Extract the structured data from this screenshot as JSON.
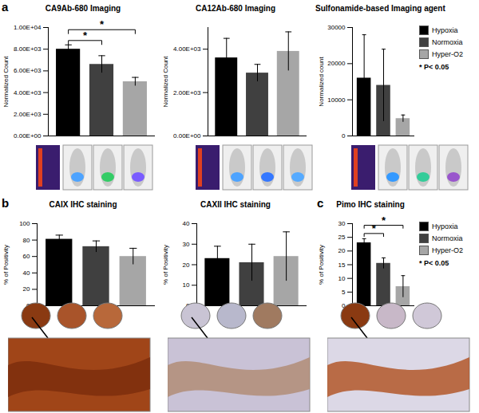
{
  "chart_data": [
    {
      "type": "bar",
      "panel": "a",
      "title": "CA9Ab-680 Imaging",
      "y_label": "Normalized Count",
      "categories": [
        "Hypoxia",
        "Normoxia",
        "Hyper-O2"
      ],
      "values": [
        8000,
        6600,
        5000
      ],
      "errors": [
        400,
        800,
        400
      ],
      "colors": [
        "#000000",
        "#404040",
        "#a6a6a6"
      ],
      "ylim": [
        0,
        10000
      ],
      "yticks": [
        {
          "value": 0,
          "label": "0.00E+00"
        },
        {
          "value": 2000,
          "label": "2.00E+03"
        },
        {
          "value": 4000,
          "label": "4.00E+03"
        },
        {
          "value": 6000,
          "label": "6.00E+03"
        },
        {
          "value": 8000,
          "label": "8.00E+03"
        },
        {
          "value": 10000,
          "label": "1.00E+04"
        }
      ],
      "tick_labels": "y",
      "annotations": [
        {
          "text": "*",
          "from": "Hypoxia",
          "to": "Normoxia"
        },
        {
          "text": "*",
          "from": "Hypoxia",
          "to": "Hyper-O2"
        }
      ]
    },
    {
      "type": "bar",
      "title": "CA12Ab-680 Imaging",
      "y_label": "Normalized Count",
      "categories": [
        "Hypoxia",
        "Normoxia",
        "Hyper-O2"
      ],
      "values": [
        3600,
        2900,
        3900
      ],
      "errors": [
        900,
        400,
        900
      ],
      "colors": [
        "#000000",
        "#404040",
        "#a6a6a6"
      ],
      "ylim": [
        0,
        5000
      ],
      "yticks": [
        {
          "value": 0,
          "label": "0.00E+00"
        },
        {
          "value": 2000,
          "label": "2.00E+03"
        },
        {
          "value": 4000,
          "label": "4.00E+03"
        }
      ],
      "tick_labels": "y"
    },
    {
      "type": "bar",
      "title": "Sulfonamide-based Imaging agent",
      "y_label": "Normalized count",
      "categories": [
        "Hypoxia",
        "Normoxia",
        "Hyper-O2"
      ],
      "values": [
        16000,
        14000,
        4800
      ],
      "errors": [
        12000,
        10000,
        1000
      ],
      "colors": [
        "#000000",
        "#404040",
        "#a6a6a6"
      ],
      "ylim": [
        0,
        30000
      ],
      "yticks": [
        0,
        10000,
        20000,
        30000
      ],
      "tick_labels": "y",
      "legend": "top-right",
      "caption": "* P< 0.05"
    },
    {
      "type": "bar",
      "panel": "b",
      "title": "CAIX IHC staining",
      "y_label": "% of Positivity",
      "categories": [
        "Hypoxia",
        "Normoxia",
        "Hyper-O2"
      ],
      "values": [
        81,
        72,
        60
      ],
      "errors": [
        5,
        7,
        10
      ],
      "colors": [
        "#000000",
        "#404040",
        "#a6a6a6"
      ],
      "ylim": [
        0,
        100
      ],
      "yticks": [
        0,
        20,
        40,
        60,
        80,
        100
      ],
      "tick_labels": "y"
    },
    {
      "type": "bar",
      "title": "CAXII IHC staining",
      "y_label": "% of Positivity",
      "categories": [
        "Hypoxia",
        "Normoxia",
        "Hyper-O2"
      ],
      "values": [
        23,
        21,
        24
      ],
      "errors": [
        6,
        9,
        12
      ],
      "colors": [
        "#000000",
        "#404040",
        "#a6a6a6"
      ],
      "ylim": [
        0,
        40
      ],
      "yticks": [
        0,
        10,
        20,
        30,
        40
      ],
      "tick_labels": "y"
    },
    {
      "type": "bar",
      "panel": "c",
      "title": "Pimo IHC staining",
      "y_label": "% of Positivity",
      "categories": [
        "Hypoxia",
        "Normoxia",
        "Hyper-O2"
      ],
      "values": [
        23,
        15.5,
        7
      ],
      "errors": [
        1.5,
        2,
        4
      ],
      "colors": [
        "#000000",
        "#404040",
        "#a6a6a6"
      ],
      "ylim": [
        0,
        30
      ],
      "yticks": [
        0,
        5,
        10,
        15,
        20,
        25,
        30
      ],
      "tick_labels": "y",
      "legend": "top-right",
      "caption": "* P< 0.05",
      "annotations": [
        {
          "text": "*",
          "from": "Hypoxia",
          "to": "Normoxia"
        },
        {
          "text": "*",
          "from": "Hypoxia",
          "to": "Hyper-O2"
        }
      ]
    }
  ]
}
